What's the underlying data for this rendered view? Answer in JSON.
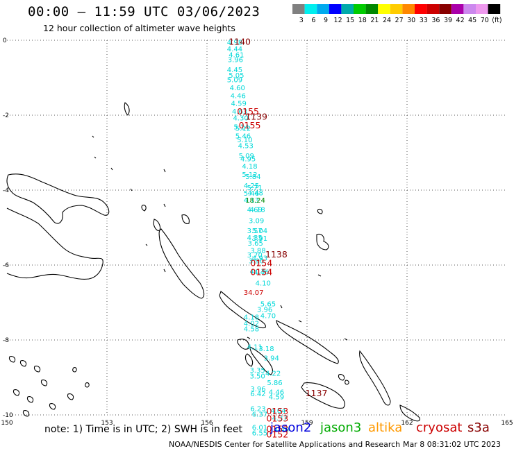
{
  "header": {
    "title": "00:00 – 11:59 UTC 03/06/2023",
    "subtitle": "12 hour collection of altimeter wave heights"
  },
  "colorbar": {
    "colors": [
      "#808080",
      "#00eeee",
      "#00aaee",
      "#0000ff",
      "#00aaaa",
      "#00cc00",
      "#008800",
      "#ffff00",
      "#ffcc00",
      "#ff8800",
      "#ff0000",
      "#cc0000",
      "#880000",
      "#aa00aa",
      "#cc88ee",
      "#ee99ee",
      "#000000"
    ],
    "labels": [
      "3",
      "6",
      "9",
      "12",
      "15",
      "18",
      "21",
      "24",
      "27",
      "30",
      "33",
      "36",
      "39",
      "42",
      "45",
      "70",
      "(ft)"
    ]
  },
  "axes": {
    "x_ticks": [
      "150",
      "153",
      "156",
      "159",
      "162",
      "165"
    ],
    "y_ticks": [
      "0",
      "-2",
      "-4",
      "-6",
      "-8",
      "-10"
    ]
  },
  "tracks": [
    {
      "satellite": "cryosat",
      "color": "#00d8d8",
      "points": [
        {
          "lon": 156.6,
          "lat": -0.12,
          "v": "4.98"
        },
        {
          "lon": 156.6,
          "lat": -0.3,
          "v": "4.44"
        },
        {
          "lon": 156.65,
          "lat": -0.45,
          "v": "4.61"
        },
        {
          "lon": 156.62,
          "lat": -0.58,
          "v": "3.96"
        },
        {
          "lon": 156.6,
          "lat": -0.85,
          "v": "4.45"
        },
        {
          "lon": 156.65,
          "lat": -1.0,
          "v": "5.05"
        },
        {
          "lon": 156.6,
          "lat": -1.12,
          "v": "5.09"
        },
        {
          "lon": 156.68,
          "lat": -1.33,
          "v": "4.60"
        },
        {
          "lon": 156.7,
          "lat": -1.55,
          "v": "4.46"
        },
        {
          "lon": 156.72,
          "lat": -1.75,
          "v": "4.59"
        },
        {
          "lon": 156.75,
          "lat": -1.96,
          "v": "4.63"
        },
        {
          "lon": 156.78,
          "lat": -2.14,
          "v": "4.30"
        },
        {
          "lon": 156.8,
          "lat": -2.38,
          "v": "5.14"
        },
        {
          "lon": 156.85,
          "lat": -2.42,
          "v": "5.12"
        },
        {
          "lon": 156.85,
          "lat": -2.62,
          "v": "5.46"
        },
        {
          "lon": 156.9,
          "lat": -2.72,
          "v": "5.10"
        },
        {
          "lon": 156.93,
          "lat": -2.88,
          "v": "4.53"
        },
        {
          "lon": 156.95,
          "lat": -3.15,
          "v": "5.09"
        },
        {
          "lon": 157.0,
          "lat": -3.23,
          "v": "4.95"
        },
        {
          "lon": 157.05,
          "lat": -3.43,
          "v": "4.18"
        },
        {
          "lon": 157.05,
          "lat": -3.65,
          "v": "5.12"
        },
        {
          "lon": 157.15,
          "lat": -3.7,
          "v": "5.84"
        },
        {
          "lon": 157.1,
          "lat": -3.94,
          "v": "4.25"
        },
        {
          "lon": 157.2,
          "lat": -4.0,
          "v": "5.71"
        },
        {
          "lon": 157.1,
          "lat": -4.15,
          "v": "5.46"
        },
        {
          "lon": 157.22,
          "lat": -4.14,
          "v": "4.48"
        },
        {
          "lon": 157.1,
          "lat": -4.33,
          "v": "4.13"
        },
        {
          "lon": 157.2,
          "lat": -4.58,
          "v": "4.69"
        },
        {
          "lon": 157.28,
          "lat": -4.58,
          "v": "4.18"
        },
        {
          "lon": 157.25,
          "lat": -4.88,
          "v": "3.09"
        },
        {
          "lon": 157.2,
          "lat": -5.15,
          "v": "3.57"
        },
        {
          "lon": 157.35,
          "lat": -5.15,
          "v": "5.04"
        },
        {
          "lon": 157.2,
          "lat": -5.33,
          "v": "4.35"
        },
        {
          "lon": 157.35,
          "lat": -5.35,
          "v": "3.91"
        },
        {
          "lon": 157.22,
          "lat": -5.48,
          "v": "3.65"
        },
        {
          "lon": 157.3,
          "lat": -5.68,
          "v": "3.88"
        },
        {
          "lon": 157.2,
          "lat": -5.8,
          "v": "3.70"
        },
        {
          "lon": 157.35,
          "lat": -5.88,
          "v": "4.93"
        },
        {
          "lon": 157.25,
          "lat": -5.95,
          "v": "3.90"
        },
        {
          "lon": 157.28,
          "lat": -6.23,
          "v": "4.13"
        },
        {
          "lon": 157.4,
          "lat": -6.25,
          "v": "4.46"
        },
        {
          "lon": 157.45,
          "lat": -6.55,
          "v": "4.10"
        },
        {
          "lon": 157.6,
          "lat": -7.1,
          "v": "5.65"
        },
        {
          "lon": 157.5,
          "lat": -7.25,
          "v": "3.96"
        },
        {
          "lon": 157.6,
          "lat": -7.42,
          "v": "4.70"
        },
        {
          "lon": 157.1,
          "lat": -7.45,
          "v": "4.18"
        },
        {
          "lon": 157.1,
          "lat": -7.62,
          "v": "4.02"
        },
        {
          "lon": 157.1,
          "lat": -7.77,
          "v": "4.58"
        },
        {
          "lon": 157.2,
          "lat": -8.25,
          "v": "4.11"
        },
        {
          "lon": 157.55,
          "lat": -8.3,
          "v": "3.18"
        },
        {
          "lon": 157.7,
          "lat": -8.55,
          "v": "3.94"
        },
        {
          "lon": 157.28,
          "lat": -8.87,
          "v": "3.35"
        },
        {
          "lon": 157.28,
          "lat": -9.03,
          "v": "3.50"
        },
        {
          "lon": 157.75,
          "lat": -8.95,
          "v": "4.22"
        },
        {
          "lon": 157.8,
          "lat": -9.2,
          "v": "5.86"
        },
        {
          "lon": 157.3,
          "lat": -9.37,
          "v": "3.96"
        },
        {
          "lon": 157.3,
          "lat": -9.5,
          "v": "6.42"
        },
        {
          "lon": 157.85,
          "lat": -9.45,
          "v": "4.46"
        },
        {
          "lon": 157.85,
          "lat": -9.58,
          "v": "4.59"
        },
        {
          "lon": 157.3,
          "lat": -9.9,
          "v": "6.23"
        },
        {
          "lon": 157.35,
          "lat": -10.05,
          "v": "6.37"
        },
        {
          "lon": 157.9,
          "lat": -9.95,
          "v": "4.04"
        },
        {
          "lon": 157.95,
          "lat": -10.15,
          "v": "4.37"
        },
        {
          "lon": 157.35,
          "lat": -10.4,
          "v": "6.01"
        },
        {
          "lon": 157.35,
          "lat": -10.55,
          "v": "6.55"
        },
        {
          "lon": 158.0,
          "lat": -10.45,
          "v": "4.40"
        }
      ]
    }
  ],
  "time_labels": [
    {
      "lon": 156.65,
      "lat": -0.12,
      "v": "1140",
      "color": "#880000"
    },
    {
      "lon": 156.9,
      "lat": -1.98,
      "v": "0155",
      "color": "#cc0000"
    },
    {
      "lon": 157.15,
      "lat": -2.12,
      "v": "1139",
      "color": "#880000"
    },
    {
      "lon": 156.95,
      "lat": -2.35,
      "v": "0155",
      "color": "#cc0000"
    },
    {
      "lon": 157.75,
      "lat": -5.8,
      "v": "1138",
      "color": "#880000"
    },
    {
      "lon": 157.3,
      "lat": -6.03,
      "v": "0154",
      "color": "#cc0000"
    },
    {
      "lon": 157.3,
      "lat": -6.27,
      "v": "0154",
      "color": "#cc0000"
    },
    {
      "lon": 158.95,
      "lat": -9.5,
      "v": "1137",
      "color": "#880000"
    },
    {
      "lon": 157.78,
      "lat": -9.98,
      "v": "0153",
      "color": "#cc0000"
    },
    {
      "lon": 157.78,
      "lat": -10.18,
      "v": "0153",
      "color": "#cc0000"
    },
    {
      "lon": 157.78,
      "lat": -10.45,
      "v": "0153",
      "color": "#cc0000"
    },
    {
      "lon": 157.78,
      "lat": -10.6,
      "v": "0152",
      "color": "#cc0000"
    }
  ],
  "other_values": [
    {
      "lon": 157.15,
      "lat": -4.33,
      "v": "18.24",
      "color": "#008800"
    },
    {
      "lon": 157.1,
      "lat": -6.8,
      "v": "34.07",
      "color": "#cc0000"
    }
  ],
  "footer": {
    "note": "note:  1) Time is in UTC;  2) SWH is in feet",
    "satellites": [
      {
        "name": "jason2",
        "color": "#0000dd"
      },
      {
        "name": "jason3",
        "color": "#00aa00"
      },
      {
        "name": "altika",
        "color": "#ff9900"
      },
      {
        "name": "cryosat",
        "color": "#cc0000"
      },
      {
        "name": "s3a",
        "color": "#880000"
      }
    ],
    "credit": "NOAA/NESDIS Center for Satellite Applications and Research",
    "timestamp": "Mar  8 08:31:02 UTC 2023"
  }
}
